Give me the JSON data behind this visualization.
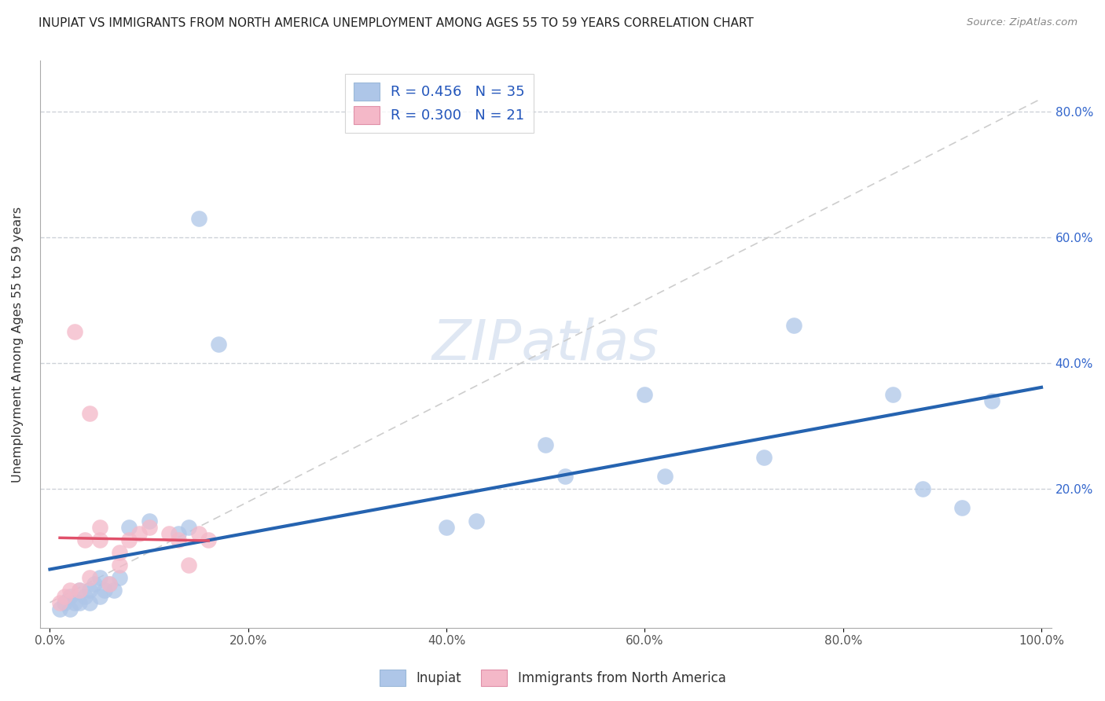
{
  "title": "INUPIAT VS IMMIGRANTS FROM NORTH AMERICA UNEMPLOYMENT AMONG AGES 55 TO 59 YEARS CORRELATION CHART",
  "source": "Source: ZipAtlas.com",
  "ylabel": "Unemployment Among Ages 55 to 59 years",
  "legend_labels": [
    "Inupiat",
    "Immigrants from North America"
  ],
  "R_inupiat": 0.456,
  "N_inupiat": 35,
  "R_immigrants": 0.3,
  "N_immigrants": 21,
  "inupiat_color": "#aec6e8",
  "immigrants_color": "#f4b8c8",
  "inupiat_line_color": "#2563b0",
  "immigrants_line_color": "#e0506a",
  "trendline_dash_color": "#c8c8c8",
  "watermark_text": "ZIPatlas",
  "xlim": [
    -0.01,
    1.01
  ],
  "ylim": [
    -0.02,
    0.88
  ],
  "xticks": [
    0.0,
    0.2,
    0.4,
    0.6,
    0.8,
    1.0
  ],
  "xticklabels": [
    "0.0%",
    "20.0%",
    "40.0%",
    "60.0%",
    "80.0%",
    "100.0%"
  ],
  "ytick_positions": [
    0.2,
    0.4,
    0.6,
    0.8
  ],
  "ytick_labels": [
    "20.0%",
    "40.0%",
    "60.0%",
    "80.0%"
  ],
  "inupiat_x": [
    0.01,
    0.015,
    0.02,
    0.02,
    0.025,
    0.03,
    0.03,
    0.035,
    0.04,
    0.04,
    0.045,
    0.05,
    0.05,
    0.055,
    0.06,
    0.065,
    0.07,
    0.08,
    0.1,
    0.13,
    0.14,
    0.15,
    0.17,
    0.4,
    0.43,
    0.5,
    0.52,
    0.6,
    0.62,
    0.72,
    0.75,
    0.85,
    0.88,
    0.92,
    0.95
  ],
  "inupiat_y": [
    0.01,
    0.02,
    0.01,
    0.03,
    0.02,
    0.04,
    0.02,
    0.03,
    0.04,
    0.02,
    0.05,
    0.03,
    0.06,
    0.04,
    0.05,
    0.04,
    0.06,
    0.14,
    0.15,
    0.13,
    0.14,
    0.63,
    0.43,
    0.14,
    0.15,
    0.27,
    0.22,
    0.35,
    0.22,
    0.25,
    0.46,
    0.35,
    0.2,
    0.17,
    0.34
  ],
  "immigrants_x": [
    0.01,
    0.015,
    0.02,
    0.025,
    0.03,
    0.035,
    0.04,
    0.04,
    0.05,
    0.05,
    0.06,
    0.07,
    0.07,
    0.08,
    0.09,
    0.1,
    0.12,
    0.13,
    0.14,
    0.15,
    0.16
  ],
  "immigrants_y": [
    0.02,
    0.03,
    0.04,
    0.45,
    0.04,
    0.12,
    0.06,
    0.32,
    0.12,
    0.14,
    0.05,
    0.08,
    0.1,
    0.12,
    0.13,
    0.14,
    0.13,
    0.12,
    0.08,
    0.13,
    0.12
  ]
}
